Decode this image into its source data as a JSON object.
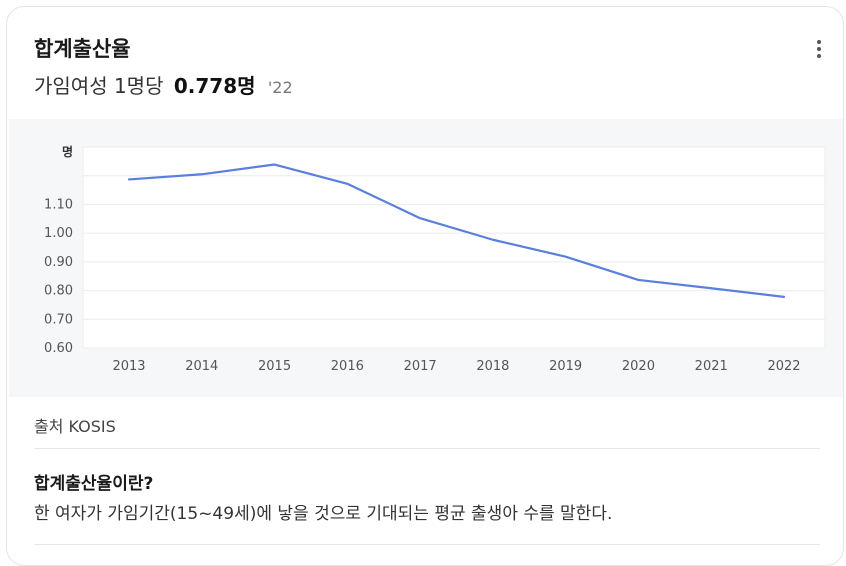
{
  "card": {
    "title": "합계출산율",
    "subtitle_prefix": "가임여성 1명당",
    "subtitle_value": "0.778명",
    "subtitle_year": "'22",
    "more_icon": "more-vertical-icon"
  },
  "source": "출처 KOSIS",
  "definition": {
    "title": "합계출산율이란?",
    "text": "한 여자가 가임기간(15~49세)에 낳을 것으로 기대되는 평균 출생아 수를 말한다."
  },
  "colors": {
    "line": "#5a7fdc",
    "chart_bg": "#f6f7f9",
    "plot_bg": "#ffffff",
    "grid": "#ececec"
  },
  "chart_data": {
    "type": "line",
    "unit_label": "명",
    "categories": [
      "2013",
      "2014",
      "2015",
      "2016",
      "2017",
      "2018",
      "2019",
      "2020",
      "2021",
      "2022"
    ],
    "values": [
      1.187,
      1.205,
      1.239,
      1.172,
      1.052,
      0.977,
      0.918,
      0.837,
      0.808,
      0.778
    ],
    "y_ticks": [
      "0.60",
      "0.70",
      "0.80",
      "0.90",
      "1.00",
      "1.10"
    ],
    "ylim": [
      0.6,
      1.3
    ],
    "grid": true,
    "legend": "none"
  }
}
